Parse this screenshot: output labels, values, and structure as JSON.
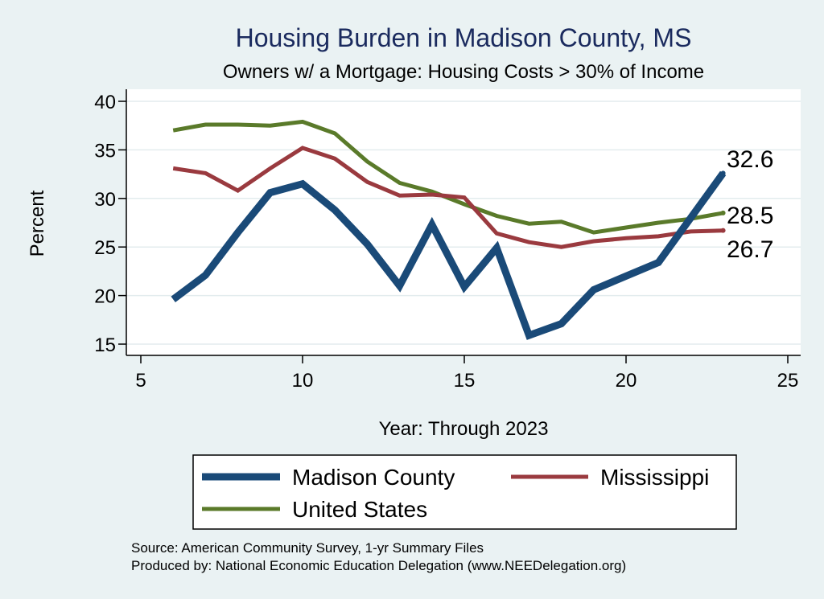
{
  "chart_data": {
    "type": "line",
    "title": "Housing Burden in Madison County, MS",
    "subtitle": "Owners w/ a Mortgage: Housing Costs > 30% of Income",
    "xlabel": "Year: Through 2023",
    "ylabel": "Percent",
    "xlim": [
      5,
      25
    ],
    "ylim": [
      15,
      40
    ],
    "xticks": [
      "5",
      "10",
      "15",
      "20",
      "25"
    ],
    "yticks": [
      "15",
      "20",
      "25",
      "30",
      "35",
      "40"
    ],
    "grid": true,
    "series": [
      {
        "name": "Madison County",
        "color": "#1a4a78",
        "x": [
          6,
          7,
          8,
          9,
          10,
          11,
          12,
          13,
          14,
          15,
          16,
          17,
          18,
          19,
          20,
          21,
          23
        ],
        "values": [
          19.6,
          22.1,
          26.5,
          30.6,
          31.5,
          28.8,
          25.3,
          21.0,
          27.3,
          20.9,
          24.9,
          15.9,
          17.1,
          20.6,
          22.0,
          23.4,
          32.6
        ],
        "end_label": "32.6"
      },
      {
        "name": "Mississippi",
        "color": "#9a3a3f",
        "x": [
          6,
          7,
          8,
          9,
          10,
          11,
          12,
          13,
          14,
          15,
          16,
          17,
          18,
          19,
          20,
          21,
          22,
          23
        ],
        "values": [
          33.1,
          32.6,
          30.8,
          33.1,
          35.2,
          34.1,
          31.7,
          30.3,
          30.4,
          30.1,
          26.4,
          25.5,
          25.0,
          25.6,
          25.9,
          26.1,
          26.6,
          26.7
        ],
        "end_label": "26.7"
      },
      {
        "name": "United States",
        "color": "#5a7a2a",
        "x": [
          6,
          7,
          8,
          9,
          10,
          11,
          12,
          13,
          14,
          15,
          16,
          17,
          18,
          19,
          20,
          21,
          22,
          23
        ],
        "values": [
          37.0,
          37.6,
          37.6,
          37.5,
          37.9,
          36.7,
          33.8,
          31.6,
          30.7,
          29.4,
          28.2,
          27.4,
          27.6,
          26.5,
          27.0,
          27.5,
          27.9,
          28.5
        ],
        "end_label": "28.5"
      }
    ],
    "legend": [
      "Madison County",
      "Mississippi",
      "United States"
    ]
  },
  "source_line": "Source: American Community Survey, 1-yr Summary Files",
  "produced_line": "Produced by: National Economic Education Delegation (www.NEEDelegation.org)"
}
